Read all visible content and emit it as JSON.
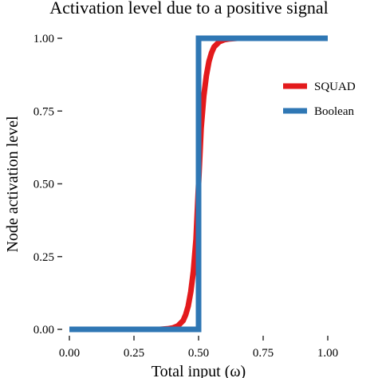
{
  "chart_data": {
    "type": "line",
    "title": "Activation level due to a positive signal",
    "xlabel": "Total input (ω)",
    "ylabel": "Node activation level",
    "xlim": [
      0,
      1
    ],
    "ylim": [
      0,
      1
    ],
    "x_ticks": [
      0.0,
      0.25,
      0.5,
      0.75,
      1.0
    ],
    "x_tick_labels": [
      "0.00",
      "0.25",
      "0.50",
      "0.75",
      "1.00"
    ],
    "y_ticks": [
      0.0,
      0.25,
      0.5,
      0.75,
      1.0
    ],
    "y_tick_labels": [
      "0.00",
      "0.25",
      "0.50",
      "0.75",
      "1.00"
    ],
    "grid": false,
    "legend_position": "right",
    "series": [
      {
        "name": "SQUAD",
        "color": "#e31a1c",
        "x": [
          0.0,
          0.35,
          0.38,
          0.4,
          0.42,
          0.44,
          0.45,
          0.46,
          0.47,
          0.48,
          0.49,
          0.5,
          0.51,
          0.52,
          0.53,
          0.54,
          0.55,
          0.56,
          0.58,
          0.6,
          0.62,
          0.65,
          1.0
        ],
        "y": [
          0.0,
          0.0,
          0.002,
          0.005,
          0.012,
          0.03,
          0.05,
          0.08,
          0.13,
          0.2,
          0.31,
          0.5,
          0.69,
          0.8,
          0.87,
          0.92,
          0.95,
          0.97,
          0.988,
          0.995,
          0.998,
          1.0,
          1.0
        ]
      },
      {
        "name": "Boolean",
        "color": "#2f77b4",
        "x": [
          0.0,
          0.5,
          0.5,
          1.0
        ],
        "y": [
          0.0,
          0.0,
          1.0,
          1.0
        ]
      }
    ]
  }
}
